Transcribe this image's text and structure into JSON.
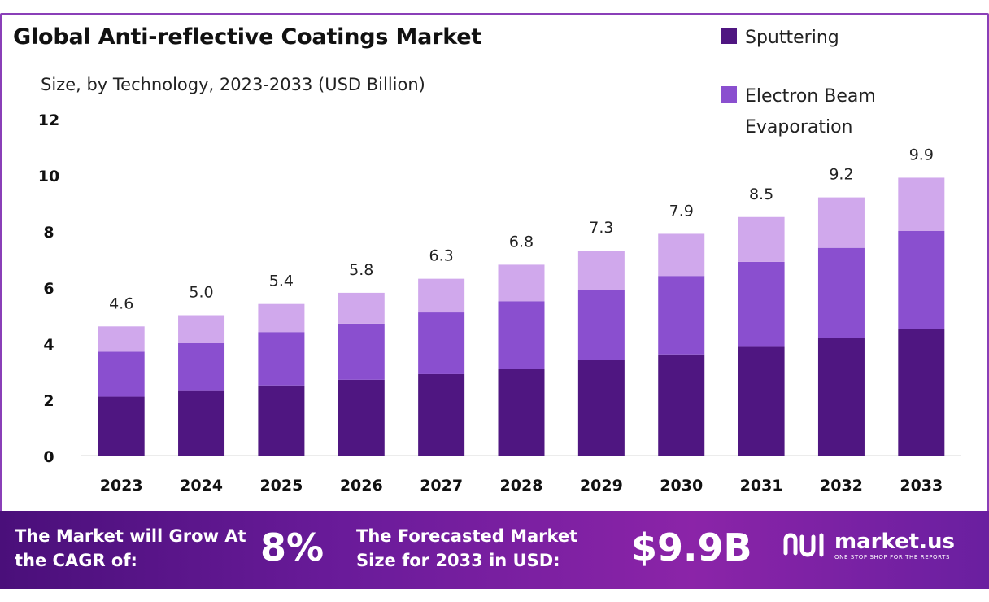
{
  "colors": {
    "sputtering": "#4f1681",
    "electron_beam": "#8a4fcf",
    "third_segment": "#d0a8ec",
    "frame": "#8a3fb8",
    "banner_start": "#4a0f7a",
    "banner_end": "#8b24a8"
  },
  "header": {
    "title": "Global Anti-reflective Coatings Market",
    "subtitle": "Size, by Technology, 2023-2033 (USD Billion)"
  },
  "legend": [
    {
      "label": "Sputtering",
      "color_key": "sputtering"
    },
    {
      "label": "Electron Beam Evaporation",
      "color_key": "electron_beam"
    }
  ],
  "chart_data": {
    "type": "bar",
    "stacked": true,
    "categories": [
      "2023",
      "2024",
      "2025",
      "2026",
      "2027",
      "2028",
      "2029",
      "2030",
      "2031",
      "2032",
      "2033"
    ],
    "series": [
      {
        "name": "Sputtering",
        "values": [
          2.1,
          2.3,
          2.5,
          2.7,
          2.9,
          3.1,
          3.4,
          3.6,
          3.9,
          4.2,
          4.5
        ]
      },
      {
        "name": "Electron Beam Evaporation",
        "values": [
          1.6,
          1.7,
          1.9,
          2.0,
          2.2,
          2.4,
          2.5,
          2.8,
          3.0,
          3.2,
          3.5
        ]
      },
      {
        "values": [
          0.9,
          1.0,
          1.0,
          1.1,
          1.2,
          1.3,
          1.4,
          1.5,
          1.6,
          1.8,
          1.9
        ]
      }
    ],
    "totals": [
      "4.6",
      "5.0",
      "5.4",
      "5.8",
      "6.3",
      "6.8",
      "7.3",
      "7.9",
      "8.5",
      "9.2",
      "9.9"
    ],
    "yticks": [
      "0",
      "2",
      "4",
      "6",
      "8",
      "10",
      "12"
    ],
    "ylim": [
      0,
      12
    ],
    "grid": false,
    "legend_position": "top-right"
  },
  "banner": {
    "cagr_label": "The Market will Grow At the CAGR of:",
    "cagr_value": "8%",
    "forecast_label": "The Forecasted Market Size for 2033 in USD:",
    "forecast_value": "$9.9B",
    "brand_name": "market.us",
    "brand_tagline": "ONE STOP SHOP FOR THE REPORTS"
  }
}
